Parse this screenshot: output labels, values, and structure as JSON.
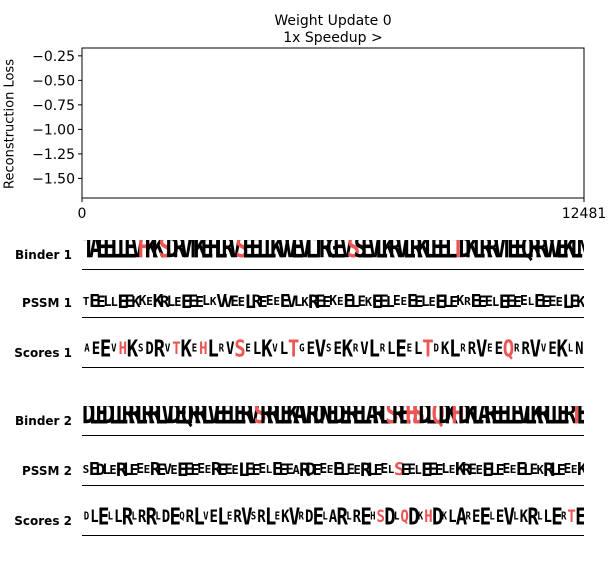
{
  "chart_data": [
    {
      "type": "line",
      "title": "Weight Update 0",
      "subtitle": "1x Speedup >",
      "xlabel": "",
      "ylabel": "Reconstruction Loss",
      "xlim": [
        0,
        12481
      ],
      "ylim": [
        -1.7,
        -0.17
      ],
      "xticks": [
        "0",
        "12481"
      ],
      "yticks": [
        "−0.25",
        "−0.50",
        "−0.75",
        "−1.00",
        "−1.25",
        "−1.50"
      ],
      "ytick_values": [
        -0.25,
        -0.5,
        -0.75,
        -1.0,
        -1.25,
        -1.5
      ],
      "series": []
    }
  ],
  "rows": [
    {
      "label": "Binder 1",
      "kind": "binder",
      "seq": "TAEELLEVHKKSDRVTKEHLRVSEELLKVVEVLTRGEVSSEVLKRVLRKLEELTDKLRRVTEEQRRVVEKLN"
    },
    {
      "label": "PSSM 1",
      "kind": "pssm",
      "seq": "TEELLEEKKEKRLEEEELKVVEELREEEEVLKREEKEELEKEELEEEELEELEKREEELEEEELEEEELEK"
    },
    {
      "label": "Scores 1",
      "kind": "scores",
      "seq": "AEEVHKSDRVTKEHLRVSELKVLTGEVSEKRVLRLEELTDKLRRVEEQRRVVEKLN"
    },
    {
      "label": "Binder 2",
      "kind": "binder",
      "seq": "DLEDLLRRLRRLVDEQRRLVEELERVSRRLEKAVRDNEDERELARLSREHSDLQDKHDKLAREELEVLKRLLERTE"
    },
    {
      "label": "PSSM 2",
      "kind": "pssm",
      "seq": "SEDLERLEEEREVEEEEEEREEELEEELEEEARDEEEELEERLEELSEELEEELEKREEELEEEELEKRLEEEK"
    },
    {
      "label": "Scores 2",
      "kind": "scores",
      "seq": "DLELLRLRRLDEQRLVELERVSRLEKVRDELARLREHSDLQDKHDKLAREELEVLKRLLERTE"
    }
  ],
  "colors": {
    "highlight": "#ee5555",
    "text": "#000000",
    "axis": "#000000"
  }
}
